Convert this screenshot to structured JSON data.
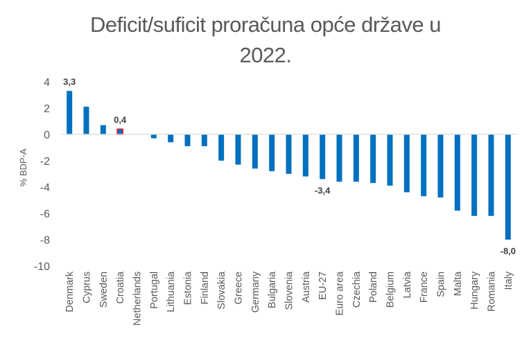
{
  "chart_data": {
    "type": "bar",
    "title": "Deficit/suficit proračuna opće države u 2022.",
    "title_lines": [
      "Deficit/suficit proračuna opće države u",
      "2022."
    ],
    "xlabel": "",
    "ylabel": "% BDP-A",
    "ylim": [
      -10,
      4
    ],
    "yticks": [
      4,
      2,
      0,
      -2,
      -4,
      -6,
      -8,
      -10
    ],
    "ytick_labels": [
      "4",
      "2",
      "0",
      "-2",
      "-4",
      "-6",
      "-8",
      "-10"
    ],
    "grid": false,
    "legend": "none",
    "categories": [
      "Denmark",
      "Cyprus",
      "Sweden",
      "Croatia",
      "Netherlands",
      "Portugal",
      "Lithuania",
      "Estonia",
      "Finland",
      "Slovakia",
      "Greece",
      "Germany",
      "Bulgaria",
      "Slovenia",
      "Austria",
      "EU-27",
      "Euro area",
      "Czechia",
      "Poland",
      "Belgium",
      "Latvia",
      "France",
      "Spain",
      "Malta",
      "Hungary",
      "Romania",
      "Italy"
    ],
    "values": [
      3.3,
      2.1,
      0.7,
      0.4,
      0.0,
      -0.3,
      -0.6,
      -0.9,
      -0.9,
      -2.0,
      -2.3,
      -2.6,
      -2.8,
      -3.0,
      -3.2,
      -3.4,
      -3.6,
      -3.6,
      -3.7,
      -3.9,
      -4.4,
      -4.7,
      -4.8,
      -5.8,
      -6.2,
      -6.2,
      -8.0
    ],
    "highlight": "Croatia",
    "data_labels": [
      {
        "category": "Denmark",
        "text": "3,3",
        "position": "above"
      },
      {
        "category": "Croatia",
        "text": "0,4",
        "position": "above"
      },
      {
        "category": "EU-27",
        "text": "-3,4",
        "position": "below"
      },
      {
        "category": "Italy",
        "text": "-8,0",
        "position": "below"
      }
    ],
    "colors": {
      "bar": "#0070C0",
      "highlight_outline": "#E8202A",
      "axis": "#D9D9D9",
      "text": "#595959"
    }
  }
}
